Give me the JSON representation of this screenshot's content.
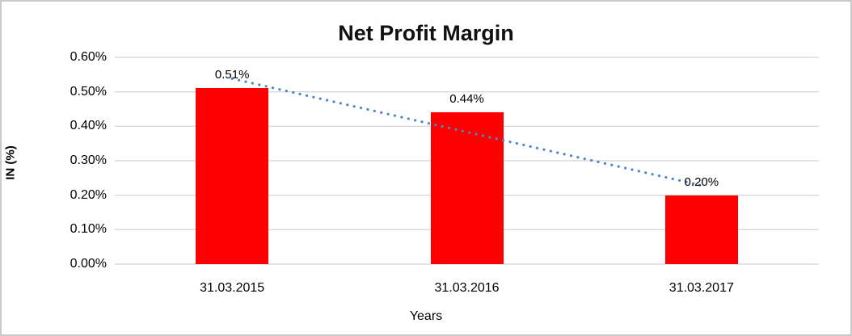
{
  "window": {
    "background": "#ffffff",
    "border_color": "#c9c9c9"
  },
  "chart_data": {
    "type": "bar",
    "title": "Net Profit Margin",
    "categories": [
      "31.03.2015",
      "31.03.2016",
      "31.03.2017"
    ],
    "values": [
      0.51,
      0.44,
      0.2
    ],
    "data_labels": [
      "0.51%",
      "0.44%",
      "0.20%"
    ],
    "xlabel": "Years",
    "ylabel": "IN (%)",
    "ylim": [
      0,
      0.6
    ],
    "y_tick_step": 0.1,
    "y_ticks": [
      "0.60%",
      "0.50%",
      "0.40%",
      "0.30%",
      "0.20%",
      "0.10%",
      "0.00%"
    ],
    "grid": true,
    "legend_position": "none",
    "bar_color": "#ff0000",
    "gridline_color": "#d9d9d9",
    "text_color": "#000000",
    "trendline": {
      "type": "linear",
      "style": "dotted",
      "color": "#4a86c8"
    }
  }
}
